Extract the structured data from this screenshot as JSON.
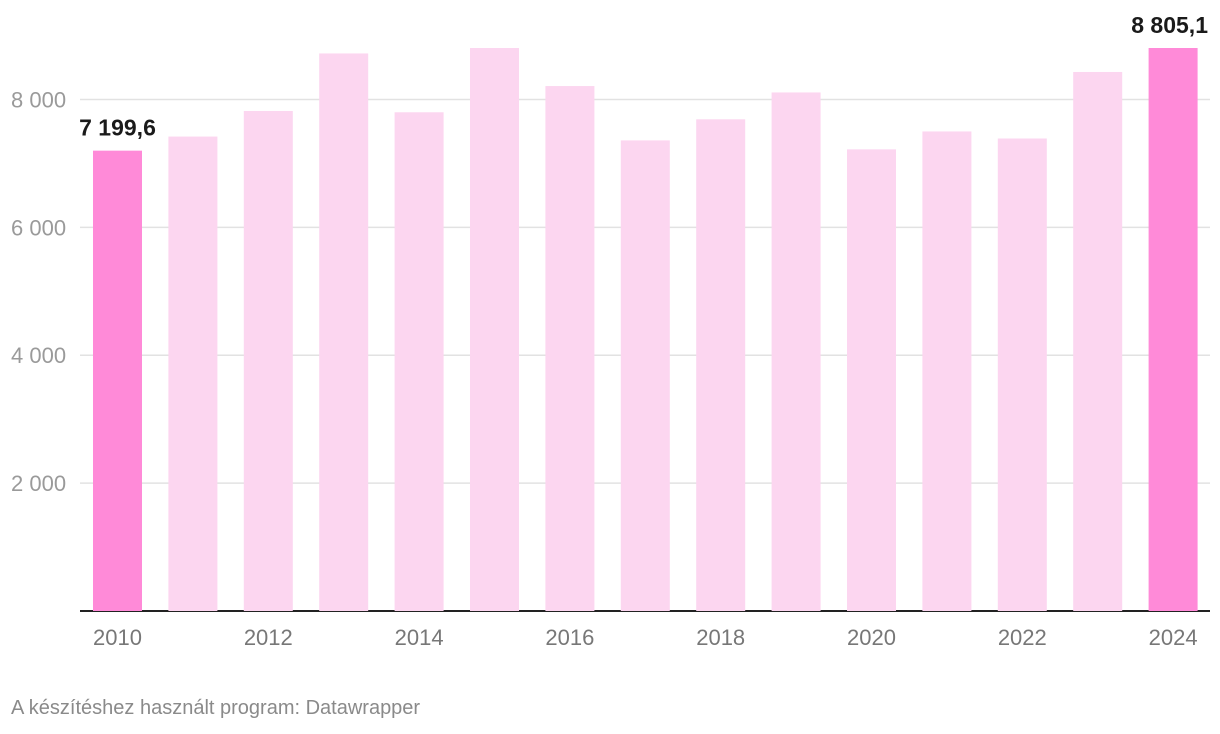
{
  "chart_data": {
    "type": "bar",
    "categories": [
      "2010",
      "2011",
      "2012",
      "2013",
      "2014",
      "2015",
      "2016",
      "2017",
      "2018",
      "2019",
      "2020",
      "2021",
      "2022",
      "2023",
      "2024"
    ],
    "values": [
      7199.6,
      7420,
      7820,
      8720,
      7800,
      8805.1,
      8210,
      7360,
      7690,
      8110,
      7220,
      7500,
      7390,
      8430,
      8805.1
    ],
    "x_tick_labels": [
      "2010",
      "2012",
      "2014",
      "2016",
      "2018",
      "2020",
      "2022",
      "2024"
    ],
    "y_ticks": [
      2000,
      4000,
      6000,
      8000
    ],
    "y_tick_labels": [
      "2 000",
      "4 000",
      "6 000",
      "8 000"
    ],
    "ylim": [
      0,
      8805.1
    ],
    "grid": true,
    "highlighted": [
      "2010",
      "2024"
    ],
    "data_labels": [
      {
        "category": "2010",
        "text": "7 199,6"
      },
      {
        "category": "2024",
        "text": "8 805,1"
      }
    ],
    "colors": {
      "highlight": "#ff8ad8",
      "normal": "#fcd6f0"
    },
    "title": "",
    "xlabel": "",
    "ylabel": ""
  },
  "footer": {
    "credit": "A készítéshez használt program: Datawrapper"
  }
}
